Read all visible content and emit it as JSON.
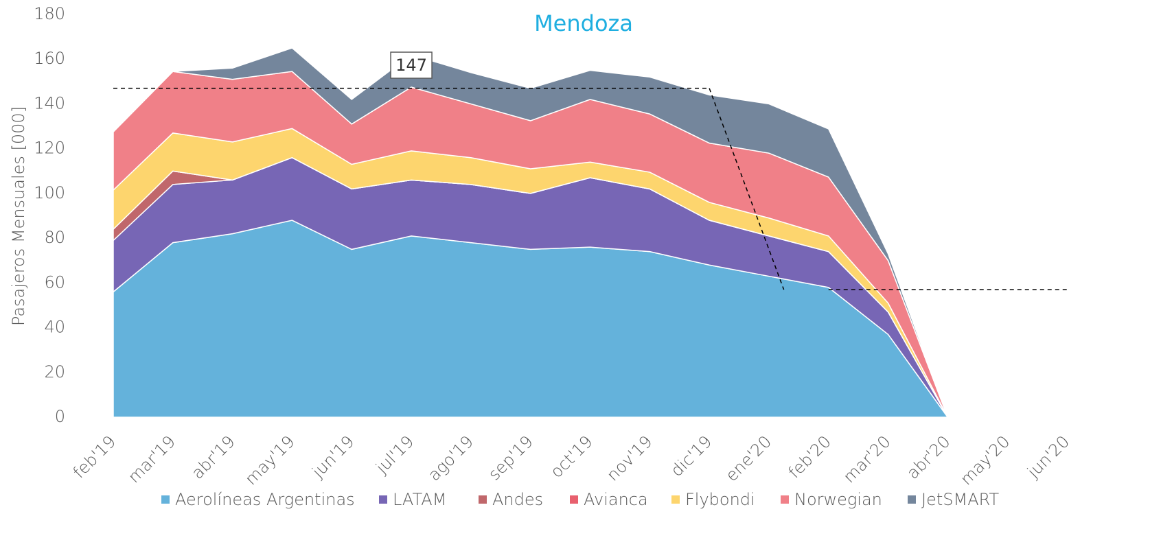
{
  "chart_data": {
    "type": "area",
    "stacked": true,
    "title": "Mendoza",
    "title_color": "#1eaee0",
    "y_label": "Pasajeros Mensuales [000]",
    "categories": [
      "feb'19",
      "mar'19",
      "abr'19",
      "may'19",
      "jun'19",
      "jul'19",
      "ago'19",
      "sep'19",
      "oct'19",
      "nov'19",
      "dic'19",
      "ene'20",
      "feb'20",
      "mar'20",
      "abr'20",
      "may'20",
      "jun'20"
    ],
    "series": [
      {
        "name": "Aerolíneas Argentinas",
        "color": "#64b2db",
        "values": [
          56,
          78,
          82,
          88,
          75,
          81,
          78,
          75,
          76,
          74,
          68,
          63,
          58,
          37,
          0,
          null,
          null
        ]
      },
      {
        "name": "LATAM",
        "color": "#7766b5",
        "values": [
          23,
          26,
          24,
          28,
          27,
          25,
          26,
          25,
          31,
          28,
          20,
          18,
          16,
          10,
          0,
          null,
          null
        ]
      },
      {
        "name": "Andes",
        "color": "#c0676b",
        "values": [
          5,
          6,
          0,
          0,
          0,
          0,
          0,
          0,
          0,
          0,
          0,
          0,
          0,
          0,
          0,
          null,
          null
        ]
      },
      {
        "name": "Avianca",
        "color": "#e8606e",
        "values": [
          0,
          0,
          0,
          0,
          0,
          0,
          0,
          0,
          0,
          0,
          0,
          0,
          0,
          0,
          0,
          null,
          null
        ]
      },
      {
        "name": "Flybondi",
        "color": "#fdd56e",
        "values": [
          17.5,
          17,
          17,
          13,
          11,
          13,
          12,
          11,
          7,
          7.5,
          8,
          8,
          7,
          4,
          0,
          null,
          null
        ]
      },
      {
        "name": "Norwegian",
        "color": "#f08088",
        "values": [
          26,
          27.5,
          28,
          25.5,
          18,
          28.5,
          24,
          21.5,
          28,
          26,
          26.5,
          29,
          26.3,
          19,
          0,
          null,
          null
        ]
      },
      {
        "name": "JetSMART",
        "color": "#74869c",
        "values": [
          0,
          0,
          5,
          10.5,
          11,
          14.5,
          14,
          14.5,
          13,
          16.5,
          21.5,
          22,
          21.5,
          3,
          0,
          null,
          null
        ]
      }
    ],
    "ylim": [
      0,
      180
    ],
    "yticks": [
      0,
      20,
      40,
      60,
      80,
      100,
      120,
      140,
      160,
      180
    ],
    "reference_lines": [
      147,
      57
    ],
    "annotations": [
      {
        "text": "147"
      }
    ]
  }
}
